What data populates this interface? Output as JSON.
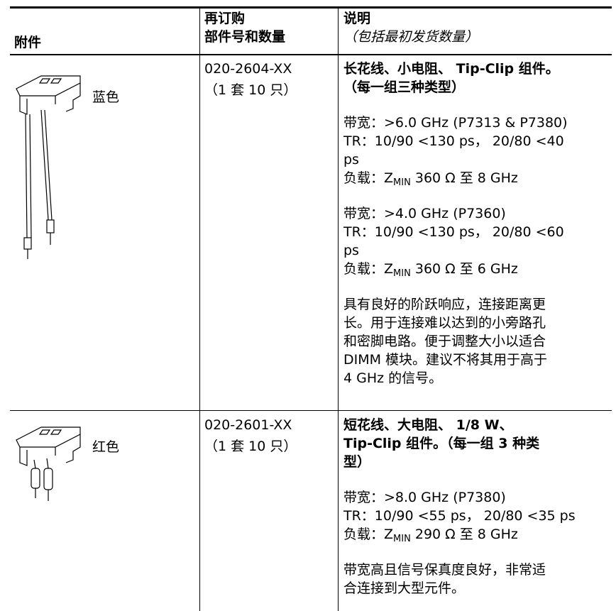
{
  "header": {
    "accessory": "附件",
    "part_number": [
      "再订购",
      "部件号和数量"
    ],
    "description": [
      "说明",
      "（包括最初发货数量）"
    ]
  },
  "rows": [
    {
      "image_label": "蓝色",
      "part_number": "020-2604-XX",
      "quantity": "（1 套 10 只）",
      "title": [
        "长花线、小电阻、 Tip-Clip 组件。",
        "（每一组三种类型）"
      ],
      "paragraphs": [
        [
          {
            "text": "带宽：>6.0 GHz (P7313 & P7380)"
          },
          {
            "text": "TR：10/90 <130 ps， 20/80 <40"
          },
          {
            "text": "ps"
          },
          {
            "text": "负载：Z",
            "sub": "MIN",
            "rest": " 360 Ω 至 8 GHz"
          }
        ],
        [
          {
            "text": "带宽：>4.0 GHz (P7360)"
          },
          {
            "text": "TR：10/90 <130 ps， 20/80 <60"
          },
          {
            "text": "ps"
          },
          {
            "text": "负载：Z",
            "sub": "MIN",
            "rest": " 360 Ω 至 6 GHz"
          }
        ],
        [
          {
            "text": "具有良好的阶跃响应，连接距离更"
          },
          {
            "text": "长。用于连接难以达到的小旁路孔"
          },
          {
            "text": "和密脚电路。便于调整大小以适合"
          },
          {
            "text": "DIMM 模块。建议不将其用于高于"
          },
          {
            "text": "4 GHz 的信号。"
          }
        ]
      ]
    },
    {
      "image_label": "红色",
      "part_number": "020-2601-XX",
      "quantity": "（1 套 10 只）",
      "title": [
        "短花线、大电阻、 1/8 W、",
        "Tip-Clip 组件。（每一组 3 种类",
        "型）"
      ],
      "paragraphs": [
        [
          {
            "text": "带宽：>8.0 GHz (P7380)"
          },
          {
            "text": "TR：10/90 <55 ps， 20/80 <35 ps"
          },
          {
            "text": "负载：Z",
            "sub": "MIN",
            "rest": " 290 Ω  至 8 GHz"
          }
        ],
        [
          {
            "text": "带宽高且信号保真度良好，非常适"
          },
          {
            "text": "合连接到大型元件。"
          }
        ]
      ]
    }
  ]
}
